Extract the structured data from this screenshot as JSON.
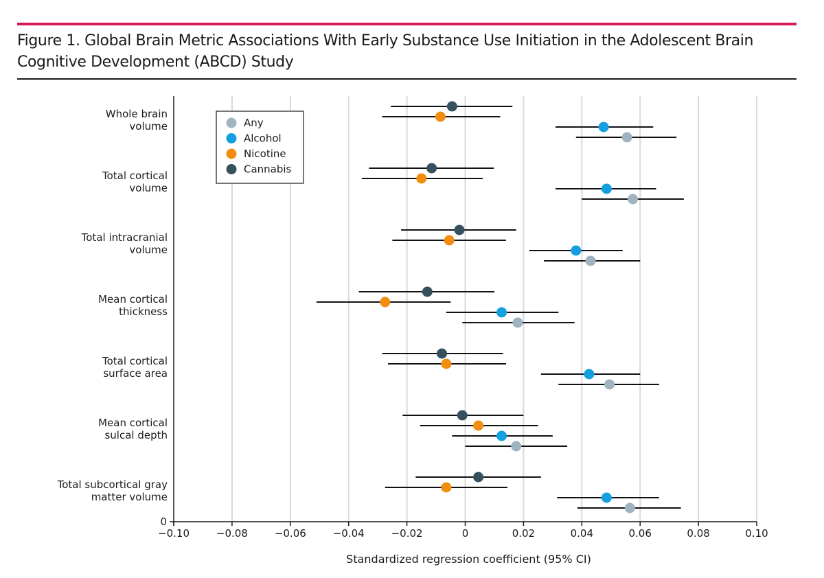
{
  "figure": {
    "title": "Figure 1. Global Brain Metric Associations With Early Substance Use Initiation in the Adolescent Brain Cognitive Development (ABCD) Study"
  },
  "chart_data": {
    "type": "forest",
    "xlabel": "Standardized regression coefficient (95% CI)",
    "xlim": [
      -0.1,
      0.1
    ],
    "xticks": [
      -0.1,
      -0.08,
      -0.06,
      -0.04,
      -0.02,
      0,
      0.02,
      0.04,
      0.06,
      0.08,
      0.1
    ],
    "xtick_labels": [
      "−0.10",
      "−0.08",
      "−0.06",
      "−0.04",
      "−0.02",
      "0",
      "0.02",
      "0.04",
      "0.06",
      "0.08",
      "0.10"
    ],
    "y_axis_bottom_label": "0",
    "grid": "vertical",
    "legend": {
      "placement": "top-left",
      "series": [
        {
          "name": "Any",
          "color": "#9fb4bf"
        },
        {
          "name": "Alcohol",
          "color": "#139fe0"
        },
        {
          "name": "Nicotine",
          "color": "#f18e0f"
        },
        {
          "name": "Cannabis",
          "color": "#37505e"
        }
      ]
    },
    "groups": [
      {
        "label": [
          "Whole brain",
          "volume"
        ],
        "rows": [
          {
            "series": "Cannabis",
            "estimate": -0.0045,
            "lower": -0.0255,
            "upper": 0.0162
          },
          {
            "series": "Nicotine",
            "estimate": -0.0085,
            "lower": -0.0285,
            "upper": 0.012
          },
          {
            "series": "Alcohol",
            "estimate": 0.0475,
            "lower": 0.031,
            "upper": 0.0645
          },
          {
            "series": "Any",
            "estimate": 0.0555,
            "lower": 0.038,
            "upper": 0.0725
          }
        ]
      },
      {
        "label": [
          "Total cortical",
          "volume"
        ],
        "rows": [
          {
            "series": "Cannabis",
            "estimate": -0.0115,
            "lower": -0.033,
            "upper": 0.0098
          },
          {
            "series": "Nicotine",
            "estimate": -0.015,
            "lower": -0.0355,
            "upper": 0.006
          },
          {
            "series": "Alcohol",
            "estimate": 0.0485,
            "lower": 0.031,
            "upper": 0.0655
          },
          {
            "series": "Any",
            "estimate": 0.0575,
            "lower": 0.04,
            "upper": 0.075
          }
        ]
      },
      {
        "label": [
          "Total intracranial",
          "volume"
        ],
        "rows": [
          {
            "series": "Cannabis",
            "estimate": -0.002,
            "lower": -0.022,
            "upper": 0.0175
          },
          {
            "series": "Nicotine",
            "estimate": -0.0055,
            "lower": -0.025,
            "upper": 0.014
          },
          {
            "series": "Alcohol",
            "estimate": 0.038,
            "lower": 0.022,
            "upper": 0.054
          },
          {
            "series": "Any",
            "estimate": 0.043,
            "lower": 0.027,
            "upper": 0.06
          }
        ]
      },
      {
        "label": [
          "Mean cortical",
          "thickness"
        ],
        "rows": [
          {
            "series": "Cannabis",
            "estimate": -0.013,
            "lower": -0.0365,
            "upper": 0.01
          },
          {
            "series": "Nicotine",
            "estimate": -0.0275,
            "lower": -0.051,
            "upper": -0.005
          },
          {
            "series": "Alcohol",
            "estimate": 0.0125,
            "lower": -0.0065,
            "upper": 0.032
          },
          {
            "series": "Any",
            "estimate": 0.018,
            "lower": -0.001,
            "upper": 0.0375
          }
        ]
      },
      {
        "label": [
          "Total cortical",
          "surface area"
        ],
        "rows": [
          {
            "series": "Cannabis",
            "estimate": -0.008,
            "lower": -0.0285,
            "upper": 0.013
          },
          {
            "series": "Nicotine",
            "estimate": -0.0065,
            "lower": -0.0265,
            "upper": 0.014
          },
          {
            "series": "Alcohol",
            "estimate": 0.0425,
            "lower": 0.026,
            "upper": 0.06
          },
          {
            "series": "Any",
            "estimate": 0.0495,
            "lower": 0.032,
            "upper": 0.0665
          }
        ]
      },
      {
        "label": [
          "Mean cortical",
          "sulcal depth"
        ],
        "rows": [
          {
            "series": "Cannabis",
            "estimate": -0.001,
            "lower": -0.0215,
            "upper": 0.02
          },
          {
            "series": "Nicotine",
            "estimate": 0.0045,
            "lower": -0.0155,
            "upper": 0.025
          },
          {
            "series": "Alcohol",
            "estimate": 0.0125,
            "lower": -0.0045,
            "upper": 0.03
          },
          {
            "series": "Any",
            "estimate": 0.0175,
            "lower": 0.0,
            "upper": 0.035
          }
        ]
      },
      {
        "label": [
          "Total subcortical gray",
          "matter volume"
        ],
        "rows": [
          {
            "series": "Cannabis",
            "estimate": 0.0045,
            "lower": -0.017,
            "upper": 0.026
          },
          {
            "series": "Nicotine",
            "estimate": -0.0065,
            "lower": -0.0275,
            "upper": 0.0145
          },
          {
            "series": "Alcohol",
            "estimate": 0.0485,
            "lower": 0.0315,
            "upper": 0.0665
          },
          {
            "series": "Any",
            "estimate": 0.0565,
            "lower": 0.0385,
            "upper": 0.074
          }
        ]
      }
    ]
  }
}
